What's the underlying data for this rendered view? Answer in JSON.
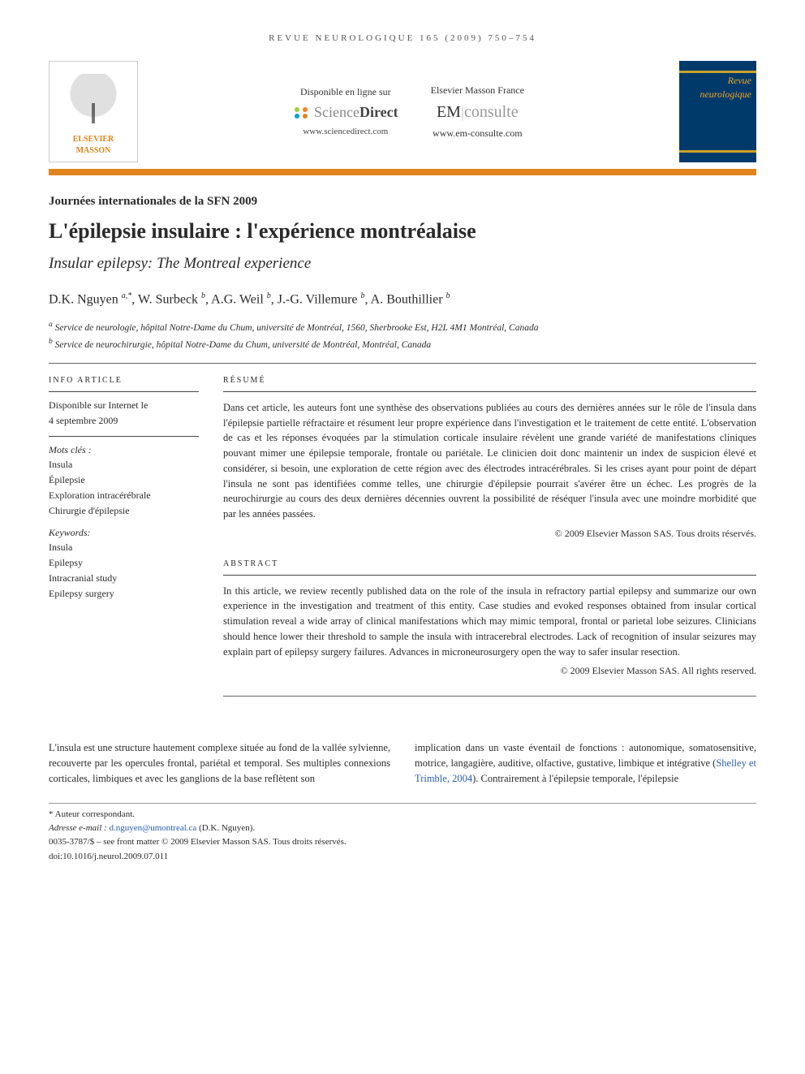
{
  "running_head": "REVUE NEUROLOGIQUE 165 (2009) 750–754",
  "publisher_logo": {
    "line1": "ELSEVIER",
    "line2": "MASSON"
  },
  "avail": {
    "label": "Disponible en ligne sur",
    "logo_left": "Science",
    "logo_right": "Direct",
    "url": "www.sciencedirect.com"
  },
  "emc": {
    "label": "Elsevier Masson France",
    "logo_em": "EM",
    "logo_consulte": "consulte",
    "url": "www.em-consulte.com"
  },
  "journal_cover": {
    "prefix": "Revue",
    "name": "neurologique"
  },
  "article_type": "Journées internationales de la SFN 2009",
  "title_fr": "L'épilepsie insulaire : l'expérience montréalaise",
  "title_en": "Insular epilepsy: The Montreal experience",
  "authors_html": "D.K. Nguyen <sup>a,*</sup>, W. Surbeck <sup>b</sup>, A.G. Weil <sup>b</sup>, J.-G. Villemure <sup>b</sup>, A. Bouthillier <sup>b</sup>",
  "authors": [
    {
      "name": "D.K. Nguyen",
      "aff": "a,*"
    },
    {
      "name": "W. Surbeck",
      "aff": "b"
    },
    {
      "name": "A.G. Weil",
      "aff": "b"
    },
    {
      "name": "J.-G. Villemure",
      "aff": "b"
    },
    {
      "name": "A. Bouthillier",
      "aff": "b"
    }
  ],
  "affiliations": {
    "a": "Service de neurologie, hôpital Notre-Dame du Chum, université de Montréal, 1560, Sherbrooke Est, H2L 4M1 Montréal, Canada",
    "b": "Service de neurochirurgie, hôpital Notre-Dame du Chum, université de Montréal, Montréal, Canada"
  },
  "info": {
    "head": "INFO ARTICLE",
    "history_line1": "Disponible sur Internet le",
    "history_line2": "4 septembre 2009",
    "mots_cles_label": "Mots clés :",
    "mots_cles": [
      "Insula",
      "Épilepsie",
      "Exploration intracérébrale",
      "Chirurgie d'épilepsie"
    ],
    "keywords_label": "Keywords:",
    "keywords": [
      "Insula",
      "Epilepsy",
      "Intracranial study",
      "Epilepsy surgery"
    ]
  },
  "resume": {
    "head": "RÉSUMÉ",
    "text": "Dans cet article, les auteurs font une synthèse des observations publiées au cours des dernières années sur le rôle de l'insula dans l'épilepsie partielle réfractaire et résument leur propre expérience dans l'investigation et le traitement de cette entité. L'observation de cas et les réponses évoquées par la stimulation corticale insulaire révèlent une grande variété de manifestations cliniques pouvant mimer une épilepsie temporale, frontale ou pariétale. Le clinicien doit donc maintenir un index de suspicion élevé et considérer, si besoin, une exploration de cette région avec des électrodes intracérébrales. Si les crises ayant pour point de départ l'insula ne sont pas identifiées comme telles, une chirurgie d'épilepsie pourrait s'avérer être un échec. Les progrès de la neurochirurgie au cours des deux dernières décennies ouvrent la possibilité de réséquer l'insula avec une moindre morbidité que par les années passées.",
    "copyright": "© 2009 Elsevier Masson SAS. Tous droits réservés."
  },
  "abstract": {
    "head": "ABSTRACT",
    "text": "In this article, we review recently published data on the role of the insula in refractory partial epilepsy and summarize our own experience in the investigation and treatment of this entity. Case studies and evoked responses obtained from insular cortical stimulation reveal a wide array of clinical manifestations which may mimic temporal, frontal or parietal lobe seizures. Clinicians should hence lower their threshold to sample the insula with intracerebral electrodes. Lack of recognition of insular seizures may explain part of epilepsy surgery failures. Advances in microneurosurgery open the way to safer insular resection.",
    "copyright": "© 2009 Elsevier Masson SAS. All rights reserved."
  },
  "body": {
    "col1": "L'insula est une structure hautement complexe située au fond de la vallée sylvienne, recouverte par les opercules frontal, pariétal et temporal. Ses multiples connexions corticales, limbiques et avec les ganglions de la base reflètent son",
    "col2_pre": "implication dans un vaste éventail de fonctions : autonomique, somatosensitive, motrice, langagière, auditive, olfactive, gustative, limbique et intégrative (",
    "col2_cite": "Shelley et Trimble, 2004",
    "col2_post": "). Contrairement à l'épilepsie temporale, l'épilepsie"
  },
  "footer": {
    "corresp": "* Auteur correspondant.",
    "email_label": "Adresse e-mail :",
    "email": "d.nguyen@umontreal.ca",
    "email_who": " (D.K. Nguyen).",
    "copyright": "0035-3787/$ – see front matter © 2009 Elsevier Masson SAS. Tous droits réservés.",
    "doi": "doi:10.1016/j.neurol.2009.07.011"
  },
  "colors": {
    "accent": "#e1841b",
    "link": "#2a5db0",
    "cover_bg": "#003a6b",
    "cover_title": "#f5a623"
  }
}
